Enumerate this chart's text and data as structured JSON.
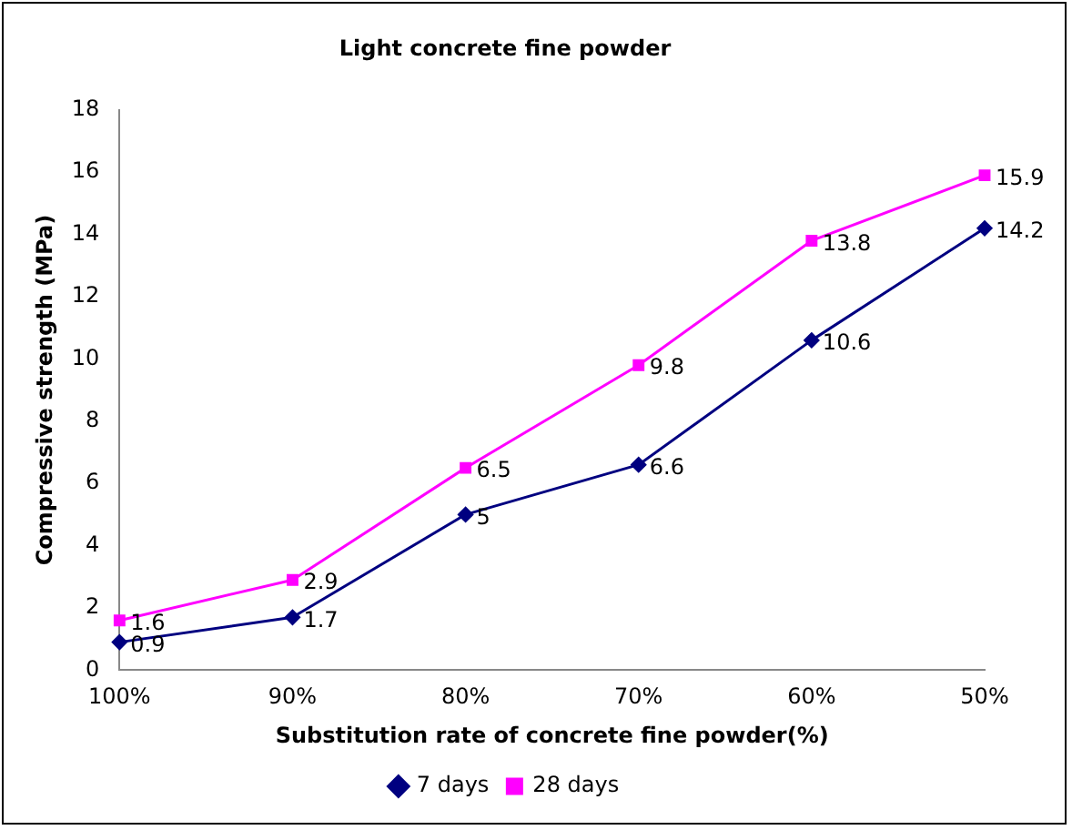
{
  "chart_data": {
    "type": "line",
    "title": "Light concrete fine powder",
    "xlabel": "Substitution rate of concrete fine powder(%)",
    "ylabel": "Compressive strength (MPa)",
    "categories": [
      "100%",
      "90%",
      "80%",
      "70%",
      "60%",
      "50%"
    ],
    "series": [
      {
        "name": "7 days",
        "color": "#000080",
        "marker": "diamond",
        "values": [
          0.9,
          1.7,
          5,
          6.6,
          10.6,
          14.2
        ]
      },
      {
        "name": "28 days",
        "color": "#ff00ff",
        "marker": "square",
        "values": [
          1.6,
          2.9,
          6.5,
          9.8,
          13.8,
          15.9
        ]
      }
    ],
    "ylim": [
      0,
      18
    ],
    "yticks": [
      0,
      2,
      4,
      6,
      8,
      10,
      12,
      14,
      16,
      18
    ],
    "grid": false,
    "legend": "bottom",
    "data_labels": true,
    "line_style": "solid"
  }
}
